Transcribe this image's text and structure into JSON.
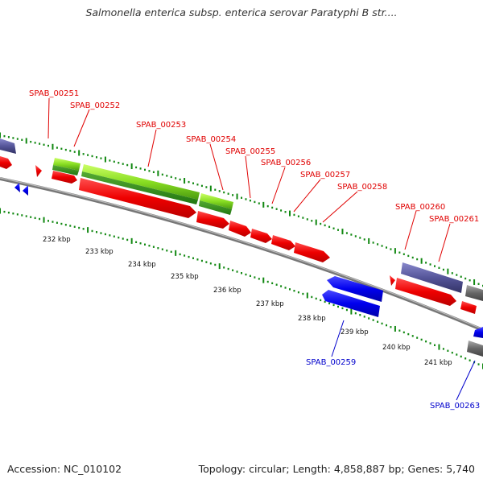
{
  "title": "Salmonella enterica subsp. enterica serovar Paratyphi B str....",
  "footer": {
    "accession": "Accession: NC_010102",
    "summary": "Topology: circular; Length: 4,858,887 bp; Genes: 5,740"
  },
  "colors": {
    "forward_cds": "#ff0000",
    "reverse_cds": "#0000ee",
    "forward_label": "#e00000",
    "reverse_label": "#0000cc",
    "gc_skew_dots": "#118811",
    "backbone": "#888888",
    "rna_green": "#88dd22",
    "purple_feature": "#555599",
    "gray_feature": "#666666"
  },
  "gene_labels": [
    {
      "text": "SPAB_00251",
      "strand": "forward"
    },
    {
      "text": "SPAB_00252",
      "strand": "forward"
    },
    {
      "text": "SPAB_00253",
      "strand": "forward"
    },
    {
      "text": "SPAB_00254",
      "strand": "forward"
    },
    {
      "text": "SPAB_00255",
      "strand": "forward"
    },
    {
      "text": "SPAB_00256",
      "strand": "forward"
    },
    {
      "text": "SPAB_00257",
      "strand": "forward"
    },
    {
      "text": "SPAB_00258",
      "strand": "forward"
    },
    {
      "text": "SPAB_00260",
      "strand": "forward"
    },
    {
      "text": "SPAB_00261",
      "strand": "forward"
    },
    {
      "text": "SPAB_00259",
      "strand": "reverse"
    },
    {
      "text": "SPAB_00263",
      "strand": "reverse"
    }
  ],
  "ticks": [
    "232 kbp",
    "233 kbp",
    "234 kbp",
    "235 kbp",
    "236 kbp",
    "237 kbp",
    "238 kbp",
    "239 kbp",
    "240 kbp",
    "241 kbp"
  ]
}
